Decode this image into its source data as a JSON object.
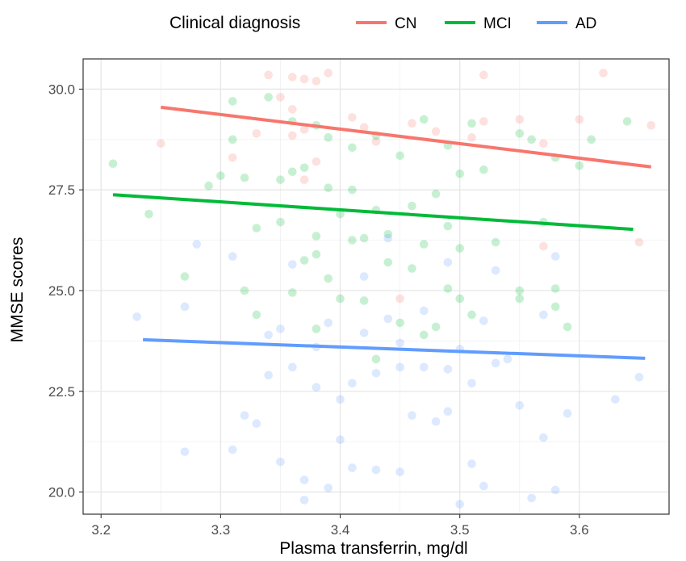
{
  "chart_data": {
    "type": "scatter",
    "title": "",
    "xlabel": "Plasma transferrin, mg/dl",
    "ylabel": "MMSE scores",
    "xlim": [
      3.185,
      3.675
    ],
    "ylim": [
      19.45,
      30.75
    ],
    "x_ticks": [
      3.2,
      3.3,
      3.4,
      3.5,
      3.6
    ],
    "x_tick_labels": [
      "3.2",
      "3.3",
      "3.4",
      "3.5",
      "3.6"
    ],
    "y_ticks": [
      20.0,
      22.5,
      25.0,
      27.5,
      30.0
    ],
    "y_tick_labels": [
      "20.0",
      "22.5",
      "25.0",
      "27.5",
      "30.0"
    ],
    "grid": true,
    "legend": {
      "title": "Clinical diagnosis",
      "position": "top"
    },
    "series": [
      {
        "name": "CN",
        "color": "#F8766D",
        "trend_line": {
          "x": [
            3.25,
            3.66
          ],
          "y": [
            29.55,
            28.07
          ]
        },
        "points": [
          [
            3.25,
            28.65
          ],
          [
            3.31,
            28.3
          ],
          [
            3.34,
            30.35
          ],
          [
            3.36,
            30.3
          ],
          [
            3.37,
            30.25
          ],
          [
            3.38,
            30.2
          ],
          [
            3.39,
            30.4
          ],
          [
            3.35,
            29.8
          ],
          [
            3.36,
            29.5
          ],
          [
            3.37,
            29.0
          ],
          [
            3.38,
            28.2
          ],
          [
            3.36,
            28.85
          ],
          [
            3.33,
            28.9
          ],
          [
            3.41,
            29.3
          ],
          [
            3.42,
            29.05
          ],
          [
            3.43,
            28.7
          ],
          [
            3.46,
            29.15
          ],
          [
            3.48,
            28.95
          ],
          [
            3.51,
            28.8
          ],
          [
            3.52,
            30.35
          ],
          [
            3.52,
            29.2
          ],
          [
            3.55,
            29.25
          ],
          [
            3.57,
            28.65
          ],
          [
            3.6,
            29.25
          ],
          [
            3.62,
            30.4
          ],
          [
            3.66,
            29.1
          ],
          [
            3.65,
            26.2
          ],
          [
            3.57,
            26.1
          ],
          [
            3.45,
            24.8
          ],
          [
            3.37,
            27.75
          ]
        ]
      },
      {
        "name": "MCI",
        "color": "#00BA38",
        "trend_line": {
          "x": [
            3.21,
            3.645
          ],
          "y": [
            27.38,
            26.52
          ]
        },
        "points": [
          [
            3.21,
            28.15
          ],
          [
            3.24,
            26.9
          ],
          [
            3.27,
            25.35
          ],
          [
            3.29,
            27.6
          ],
          [
            3.3,
            27.85
          ],
          [
            3.31,
            28.75
          ],
          [
            3.31,
            29.7
          ],
          [
            3.32,
            27.8
          ],
          [
            3.32,
            25.0
          ],
          [
            3.33,
            26.55
          ],
          [
            3.33,
            24.4
          ],
          [
            3.34,
            29.8
          ],
          [
            3.35,
            27.75
          ],
          [
            3.35,
            26.7
          ],
          [
            3.36,
            29.2
          ],
          [
            3.36,
            27.95
          ],
          [
            3.36,
            24.95
          ],
          [
            3.37,
            28.05
          ],
          [
            3.37,
            25.75
          ],
          [
            3.38,
            29.1
          ],
          [
            3.38,
            26.35
          ],
          [
            3.38,
            24.05
          ],
          [
            3.39,
            28.8
          ],
          [
            3.39,
            27.55
          ],
          [
            3.39,
            25.3
          ],
          [
            3.4,
            26.9
          ],
          [
            3.4,
            24.8
          ],
          [
            3.41,
            28.55
          ],
          [
            3.41,
            27.5
          ],
          [
            3.42,
            26.3
          ],
          [
            3.42,
            24.75
          ],
          [
            3.43,
            28.85
          ],
          [
            3.43,
            23.3
          ],
          [
            3.44,
            25.7
          ],
          [
            3.45,
            28.35
          ],
          [
            3.45,
            24.2
          ],
          [
            3.46,
            27.1
          ],
          [
            3.46,
            25.55
          ],
          [
            3.47,
            29.25
          ],
          [
            3.47,
            26.15
          ],
          [
            3.48,
            27.4
          ],
          [
            3.48,
            24.1
          ],
          [
            3.49,
            28.6
          ],
          [
            3.49,
            25.05
          ],
          [
            3.5,
            27.9
          ],
          [
            3.5,
            26.05
          ],
          [
            3.51,
            29.15
          ],
          [
            3.51,
            24.4
          ],
          [
            3.52,
            28.0
          ],
          [
            3.53,
            26.2
          ],
          [
            3.55,
            28.9
          ],
          [
            3.55,
            25.0
          ],
          [
            3.56,
            28.75
          ],
          [
            3.57,
            26.7
          ],
          [
            3.58,
            25.05
          ],
          [
            3.58,
            28.3
          ],
          [
            3.6,
            28.1
          ],
          [
            3.61,
            28.75
          ],
          [
            3.64,
            29.2
          ],
          [
            3.58,
            24.6
          ],
          [
            3.59,
            24.1
          ],
          [
            3.55,
            24.8
          ],
          [
            3.47,
            23.9
          ],
          [
            3.41,
            26.25
          ],
          [
            3.44,
            26.4
          ],
          [
            3.49,
            26.6
          ],
          [
            3.38,
            25.9
          ],
          [
            3.5,
            24.8
          ],
          [
            3.43,
            27.0
          ]
        ]
      },
      {
        "name": "AD",
        "color": "#619CFF",
        "trend_line": {
          "x": [
            3.235,
            3.655
          ],
          "y": [
            23.78,
            23.32
          ]
        },
        "points": [
          [
            3.23,
            24.35
          ],
          [
            3.27,
            24.6
          ],
          [
            3.28,
            26.15
          ],
          [
            3.27,
            21.0
          ],
          [
            3.31,
            21.05
          ],
          [
            3.31,
            25.85
          ],
          [
            3.32,
            21.9
          ],
          [
            3.33,
            21.7
          ],
          [
            3.34,
            22.9
          ],
          [
            3.34,
            23.9
          ],
          [
            3.35,
            24.05
          ],
          [
            3.35,
            20.75
          ],
          [
            3.36,
            25.65
          ],
          [
            3.37,
            20.3
          ],
          [
            3.37,
            19.8
          ],
          [
            3.38,
            22.6
          ],
          [
            3.38,
            23.6
          ],
          [
            3.39,
            24.2
          ],
          [
            3.39,
            20.1
          ],
          [
            3.4,
            22.3
          ],
          [
            3.4,
            21.3
          ],
          [
            3.41,
            20.6
          ],
          [
            3.41,
            22.7
          ],
          [
            3.42,
            23.95
          ],
          [
            3.42,
            25.35
          ],
          [
            3.43,
            22.95
          ],
          [
            3.43,
            20.55
          ],
          [
            3.44,
            26.3
          ],
          [
            3.44,
            24.3
          ],
          [
            3.45,
            23.1
          ],
          [
            3.45,
            20.5
          ],
          [
            3.46,
            21.9
          ],
          [
            3.47,
            23.1
          ],
          [
            3.47,
            24.5
          ],
          [
            3.48,
            21.75
          ],
          [
            3.49,
            23.05
          ],
          [
            3.49,
            25.7
          ],
          [
            3.5,
            23.55
          ],
          [
            3.5,
            19.7
          ],
          [
            3.51,
            20.7
          ],
          [
            3.51,
            22.7
          ],
          [
            3.52,
            24.25
          ],
          [
            3.53,
            23.2
          ],
          [
            3.53,
            25.5
          ],
          [
            3.54,
            23.3
          ],
          [
            3.55,
            22.15
          ],
          [
            3.56,
            19.85
          ],
          [
            3.57,
            24.4
          ],
          [
            3.57,
            21.35
          ],
          [
            3.58,
            20.05
          ],
          [
            3.58,
            25.85
          ],
          [
            3.59,
            21.95
          ],
          [
            3.63,
            22.3
          ],
          [
            3.65,
            22.85
          ],
          [
            3.52,
            20.15
          ],
          [
            3.49,
            22.0
          ],
          [
            3.45,
            23.7
          ],
          [
            3.36,
            23.1
          ]
        ]
      }
    ]
  }
}
